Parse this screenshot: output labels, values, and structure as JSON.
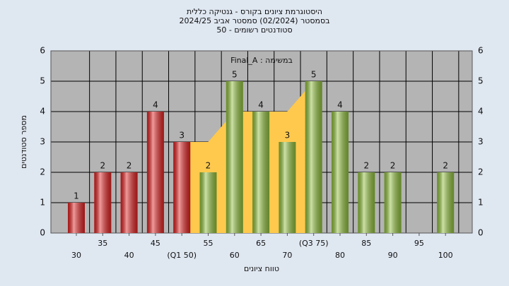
{
  "chart_data": {
    "type": "bar",
    "title": "היסטוגרמת ציונים בקורס - גנטיקה כללית",
    "subtitle": "בסמסטר  (02/2024)  סמסטר אביב 2024/25",
    "subtitle2": "סטודנטים רשומים - 50",
    "annotation": "במשימה : Final_A",
    "x_label": "טווח ציונים",
    "y_label": "מספר סטודנטים",
    "categories": [
      "30",
      "35",
      "40",
      "45",
      "(Q1 50)",
      "55",
      "60",
      "65",
      "70",
      "(Q3 75)",
      "80",
      "85",
      "90",
      "95",
      "100"
    ],
    "values": [
      1,
      2,
      2,
      4,
      3,
      2,
      5,
      4,
      3,
      5,
      4,
      2,
      2,
      null,
      2
    ],
    "colors": [
      "#e02020",
      "#e02020",
      "#e02020",
      "#e02020",
      "#e02020",
      "#8fbf3a",
      "#8fbf3a",
      "#8fbf3a",
      "#8fbf3a",
      "#8fbf3a",
      "#8fbf3a",
      "#8fbf3a",
      "#8fbf3a",
      "#8fbf3a",
      "#8fbf3a"
    ],
    "quartile_area": {
      "color": "#ffc94d",
      "values": [
        null,
        null,
        null,
        null,
        3,
        3,
        4,
        4,
        4,
        5,
        null,
        null,
        null,
        null,
        null
      ]
    },
    "ylim": [
      0,
      6
    ],
    "yticks": [
      0,
      1,
      2,
      3,
      4,
      5,
      6
    ],
    "grid": true
  }
}
